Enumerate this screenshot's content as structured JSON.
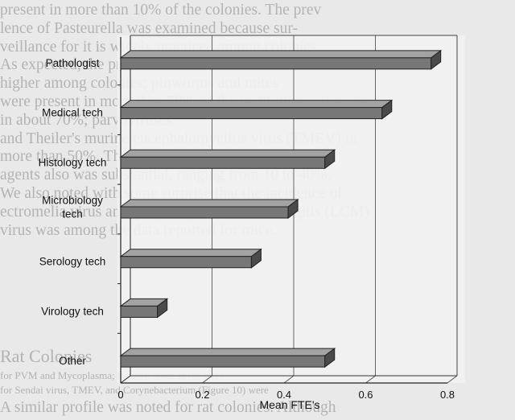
{
  "background_text": {
    "lines": [
      "present in more than 10% of the colonies. The prev",
      "lence of Pasteurella was examined because sur-",
      "veillance for it is widely practiced among colonies.",
      "As expected, the prevalence of Sendai virus was still",
      "higher among colonies; pinworms and mites",
      "were present in more than 70% of the institutions; pinworms",
      "in about 70%; parvoviruses",
      "and Theiler's murine encephalomyelitis virus (TMEV) in",
      "more than 50%. The prevalence of other infectious",
      "agents also was substantial, ranging from 10 to 40%.",
      "We also noted with some surprise that the incidence of",
      "ectromelia virus and lymphocytic choriomeningitis (LCM)",
      "virus was among the data reported for mice."
    ],
    "heading": "Rat Colonies",
    "heading_sub": "for PVM and Mycoplasma; the difference in the rates",
    "heading_sub2": "for Sendai virus, TMEV, and Corynebacterium (Figure 10) were",
    "last_line": "A similar profile was noted for rat colonies. Although"
  },
  "chart_data": {
    "type": "bar",
    "orientation": "horizontal",
    "bar_style": "3d",
    "categories": [
      "Pathologist",
      "Medical tech",
      "Histology tech",
      "Microbiology tech",
      "Serology tech",
      "Virology tech",
      "Other"
    ],
    "category_label_lines": [
      [
        "Pathologist"
      ],
      [
        "Medical tech"
      ],
      [
        "Histology tech"
      ],
      [
        "Microbiology",
        "tech"
      ],
      [
        "Serology tech"
      ],
      [
        "Virology tech"
      ],
      [
        "Other"
      ]
    ],
    "values": [
      0.76,
      0.64,
      0.5,
      0.41,
      0.32,
      0.09,
      0.5
    ],
    "xlabel": "Mean FTE's",
    "ylabel": "",
    "title": "",
    "xlim": [
      0,
      0.8
    ],
    "xticks": [
      "0",
      "0.2",
      "0.4",
      "0.6",
      "0.8"
    ],
    "grid": "vertical",
    "bar_color": "#777777",
    "bar_top_color": "#a3a3a3",
    "bar_end_color": "#4a4a4a"
  }
}
